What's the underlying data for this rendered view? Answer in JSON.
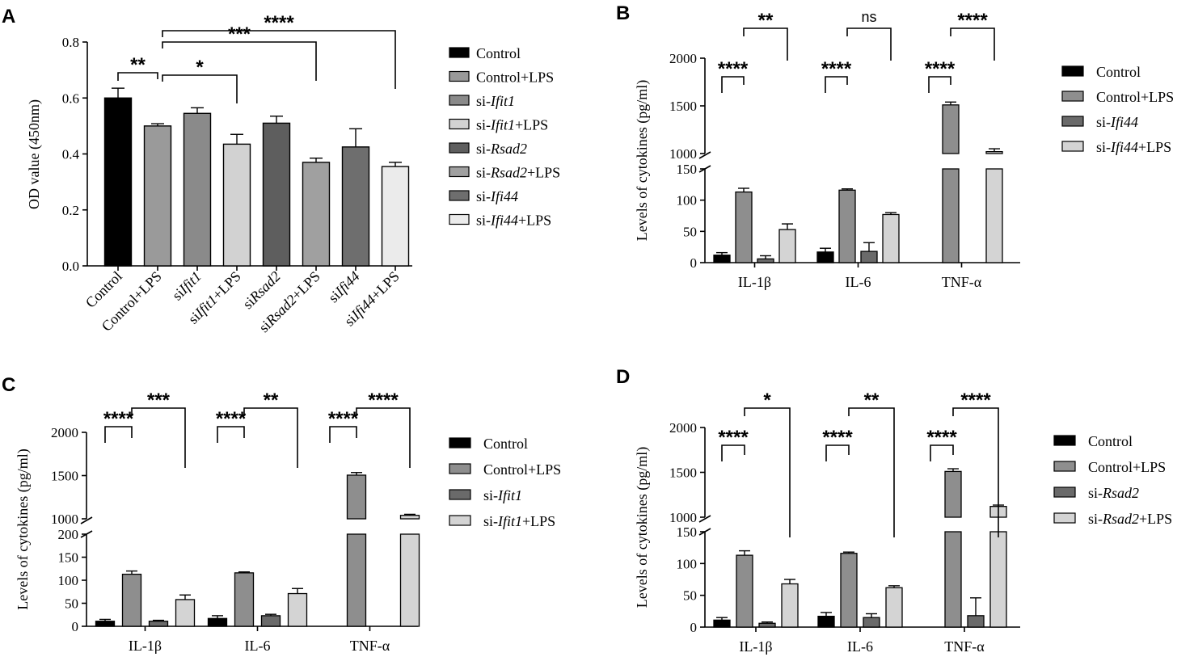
{
  "chart_data": [
    {
      "panel": "A",
      "type": "bar",
      "ylabel": "OD value (450nm)",
      "ylim": [
        0,
        0.8
      ],
      "yticks": [
        "0.0",
        "0.2",
        "0.4",
        "0.6",
        "0.8"
      ],
      "categories": [
        {
          "pre": "Control",
          "ital": "",
          "post": ""
        },
        {
          "pre": "Control+LPS",
          "ital": "",
          "post": ""
        },
        {
          "pre": "si",
          "ital": "Ifit1",
          "post": ""
        },
        {
          "pre": "si",
          "ital": "Ifit1",
          "post": "+LPS"
        },
        {
          "pre": "si",
          "ital": "Rsad2",
          "post": ""
        },
        {
          "pre": "si",
          "ital": "Rsad2",
          "post": "+LPS"
        },
        {
          "pre": "si",
          "ital": "Ifi44",
          "post": ""
        },
        {
          "pre": "si",
          "ital": "Ifi44",
          "post": "+LPS"
        }
      ],
      "values": [
        0.6,
        0.5,
        0.545,
        0.435,
        0.51,
        0.37,
        0.425,
        0.355
      ],
      "errors": [
        0.035,
        0.008,
        0.02,
        0.035,
        0.025,
        0.015,
        0.065,
        0.015
      ],
      "colors": [
        "#000000",
        "#9a9a9a",
        "#8a8a8a",
        "#d2d2d2",
        "#5e5e5e",
        "#a0a0a0",
        "#6e6e6e",
        "#ebebeb"
      ],
      "legend": [
        {
          "pre": "Control",
          "ital": "",
          "post": ""
        },
        {
          "pre": "Control+LPS",
          "ital": "",
          "post": ""
        },
        {
          "pre": "si-",
          "ital": "Ifit1",
          "post": ""
        },
        {
          "pre": "si-",
          "ital": "Ifit1",
          "post": "+LPS"
        },
        {
          "pre": "si-",
          "ital": "Rsad2",
          "post": ""
        },
        {
          "pre": "si-",
          "ital": "Rsad2",
          "post": "+LPS"
        },
        {
          "pre": "si-",
          "ital": "Ifi44",
          "post": ""
        },
        {
          "pre": "si-",
          "ital": "Ifi44",
          "post": "+LPS"
        }
      ],
      "significance": [
        {
          "from": 0,
          "to": 1,
          "label": "**"
        },
        {
          "from": 1,
          "to": 3,
          "label": "*"
        },
        {
          "from": 1,
          "to": 5,
          "label": "***"
        },
        {
          "from": 1,
          "to": 7,
          "label": "****"
        }
      ]
    },
    {
      "panel": "B",
      "type": "bar",
      "ylabel": "Levels of cytokines (pg/ml)",
      "lower_ylim": [
        0,
        150
      ],
      "upper_ylim": [
        1000,
        2000
      ],
      "lower_ticks": [
        "0",
        "50",
        "100",
        "150"
      ],
      "upper_ticks": [
        "1000",
        "1500",
        "2000"
      ],
      "groups": [
        "IL-1β",
        "IL-6",
        "TNF-α"
      ],
      "series": [
        {
          "pre": "Control",
          "ital": "",
          "post": "",
          "color": "#000000",
          "values": [
            12,
            17,
            0
          ],
          "errors": [
            4,
            6,
            0
          ]
        },
        {
          "pre": "Control+LPS",
          "ital": "",
          "post": "",
          "color": "#8e8e8e",
          "values": [
            113,
            116,
            1510
          ],
          "errors": [
            6,
            2,
            30
          ]
        },
        {
          "pre": "si-",
          "ital": "Ifi44",
          "post": "",
          "color": "#6a6a6a",
          "values": [
            6,
            18,
            0
          ],
          "errors": [
            5,
            14,
            0
          ]
        },
        {
          "pre": "si-",
          "ital": "Ifi44",
          "post": "+LPS",
          "color": "#d4d4d4",
          "values": [
            53,
            77,
            1020
          ],
          "errors": [
            9,
            3,
            30
          ]
        }
      ],
      "significance": [
        {
          "group": 0,
          "from": 0,
          "to": 1,
          "label": "****"
        },
        {
          "group": 0,
          "from": 1,
          "to": 3,
          "label": "**"
        },
        {
          "group": 1,
          "from": 0,
          "to": 1,
          "label": "****"
        },
        {
          "group": 1,
          "from": 1,
          "to": 3,
          "label": "ns"
        },
        {
          "group": 2,
          "from": 0,
          "to": 1,
          "label": "****"
        },
        {
          "group": 2,
          "from": 1,
          "to": 3,
          "label": "****"
        }
      ]
    },
    {
      "panel": "C",
      "type": "bar",
      "ylabel": "Levels of cytokines (pg/ml)",
      "lower_ylim": [
        0,
        200
      ],
      "upper_ylim": [
        1000,
        2000
      ],
      "lower_ticks": [
        "0",
        "50",
        "100",
        "150",
        "200"
      ],
      "upper_ticks": [
        "1000",
        "1500",
        "2000"
      ],
      "groups": [
        "IL-1β",
        "IL-6",
        "TNF-α"
      ],
      "series": [
        {
          "pre": "Control",
          "ital": "",
          "post": "",
          "color": "#000000",
          "values": [
            11,
            17,
            0
          ],
          "errors": [
            4,
            6,
            0
          ]
        },
        {
          "pre": "Control+LPS",
          "ital": "",
          "post": "",
          "color": "#8e8e8e",
          "values": [
            113,
            116,
            1505
          ],
          "errors": [
            7,
            2,
            30
          ]
        },
        {
          "pre": "si-",
          "ital": "Ifit1",
          "post": "",
          "color": "#6a6a6a",
          "values": [
            11,
            23,
            0
          ],
          "errors": [
            2,
            3,
            0
          ]
        },
        {
          "pre": "si-",
          "ital": "Ifit1",
          "post": "+LPS",
          "color": "#d4d4d4",
          "values": [
            58,
            71,
            1040
          ],
          "errors": [
            10,
            11,
            12
          ]
        }
      ],
      "significance": [
        {
          "group": 0,
          "from": 0,
          "to": 1,
          "label": "****"
        },
        {
          "group": 0,
          "from": 1,
          "to": 3,
          "label": "***"
        },
        {
          "group": 1,
          "from": 0,
          "to": 1,
          "label": "****"
        },
        {
          "group": 1,
          "from": 1,
          "to": 3,
          "label": "**"
        },
        {
          "group": 2,
          "from": 0,
          "to": 1,
          "label": "****"
        },
        {
          "group": 2,
          "from": 1,
          "to": 3,
          "label": "****"
        }
      ]
    },
    {
      "panel": "D",
      "type": "bar",
      "ylabel": "Levels of cytokines (pg/ml)",
      "lower_ylim": [
        0,
        150
      ],
      "upper_ylim": [
        1000,
        2000
      ],
      "lower_ticks": [
        "0",
        "50",
        "100",
        "150"
      ],
      "upper_ticks": [
        "1000",
        "1500",
        "2000"
      ],
      "groups": [
        "IL-1β",
        "IL-6",
        "TNF-α"
      ],
      "series": [
        {
          "pre": "Control",
          "ital": "",
          "post": "",
          "color": "#000000",
          "values": [
            11,
            17,
            0
          ],
          "errors": [
            4,
            6,
            0
          ]
        },
        {
          "pre": "Control+LPS",
          "ital": "",
          "post": "",
          "color": "#8e8e8e",
          "values": [
            113,
            116,
            1510
          ],
          "errors": [
            7,
            2,
            30
          ]
        },
        {
          "pre": "si-",
          "ital": "Rsad2",
          "post": "",
          "color": "#6a6a6a",
          "values": [
            6,
            15,
            18
          ],
          "errors": [
            2,
            6,
            28
          ]
        },
        {
          "pre": "si-",
          "ital": "Rsad2",
          "post": "+LPS",
          "color": "#d4d4d4",
          "values": [
            68,
            62,
            1120
          ],
          "errors": [
            7,
            3,
            15
          ]
        }
      ],
      "significance": [
        {
          "group": 0,
          "from": 0,
          "to": 1,
          "label": "****"
        },
        {
          "group": 0,
          "from": 1,
          "to": 3,
          "label": "*"
        },
        {
          "group": 1,
          "from": 0,
          "to": 1,
          "label": "****"
        },
        {
          "group": 1,
          "from": 1,
          "to": 3,
          "label": "**"
        },
        {
          "group": 2,
          "from": 0,
          "to": 1,
          "label": "****"
        },
        {
          "group": 2,
          "from": 1,
          "to": 3,
          "label": "****"
        }
      ]
    }
  ]
}
